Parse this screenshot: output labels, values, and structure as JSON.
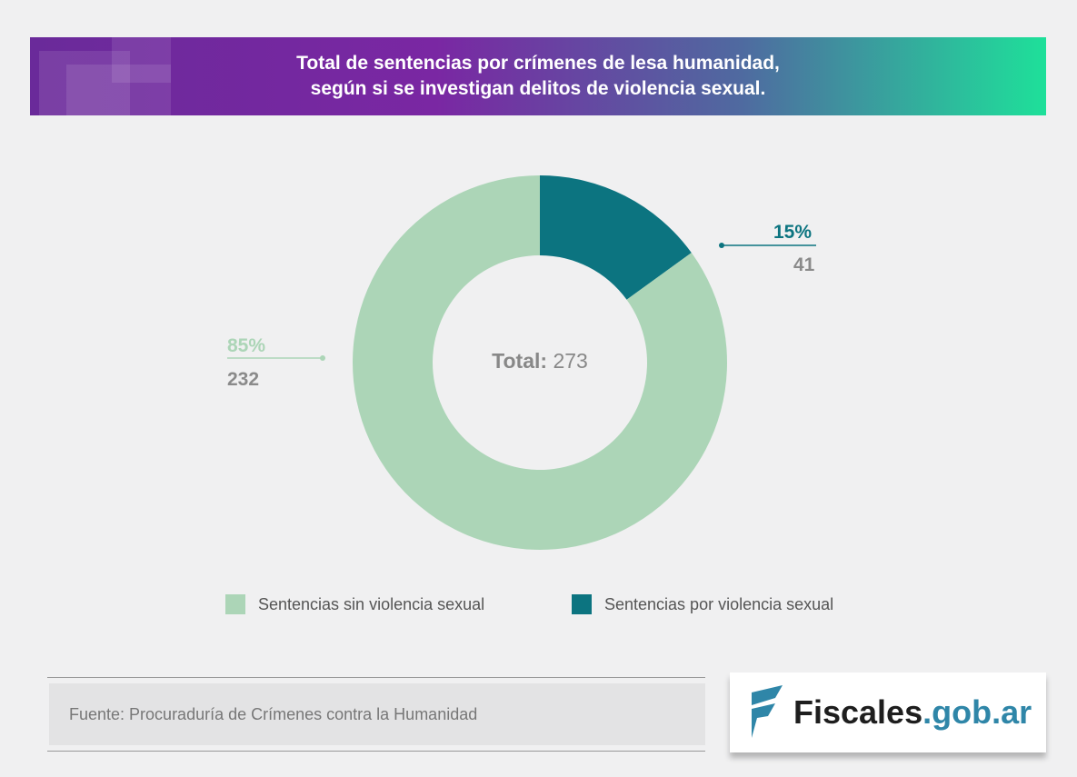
{
  "chart_data": {
    "type": "pie",
    "title": "Total de sentencias por crímenes de lesa humanidad, según si se investigan delitos de violencia sexual.",
    "title_lines": [
      "Total de sentencias por crímenes de lesa humanidad,",
      "según si se investigan delitos de violencia sexual."
    ],
    "donut": true,
    "center_label": {
      "prefix": "Total:",
      "value": "273"
    },
    "slices": [
      {
        "name": "Sentencias por violencia sexual",
        "value": 41,
        "percent_label": "15%",
        "value_label": "41",
        "color": "#0c7480"
      },
      {
        "name": "Sentencias sin violencia sexual",
        "value": 232,
        "percent_label": "85%",
        "value_label": "232",
        "color": "#acd5b7"
      }
    ],
    "legend_placement": "bottom",
    "legend": [
      "Sentencias sin violencia sexual",
      "Sentencias por violencia sexual"
    ]
  },
  "footer": {
    "source": "Fuente: Procuraduría de Crímenes contra la Humanidad"
  },
  "logo": {
    "text_main": "Fiscales",
    "text_domain": ".gob.ar"
  }
}
